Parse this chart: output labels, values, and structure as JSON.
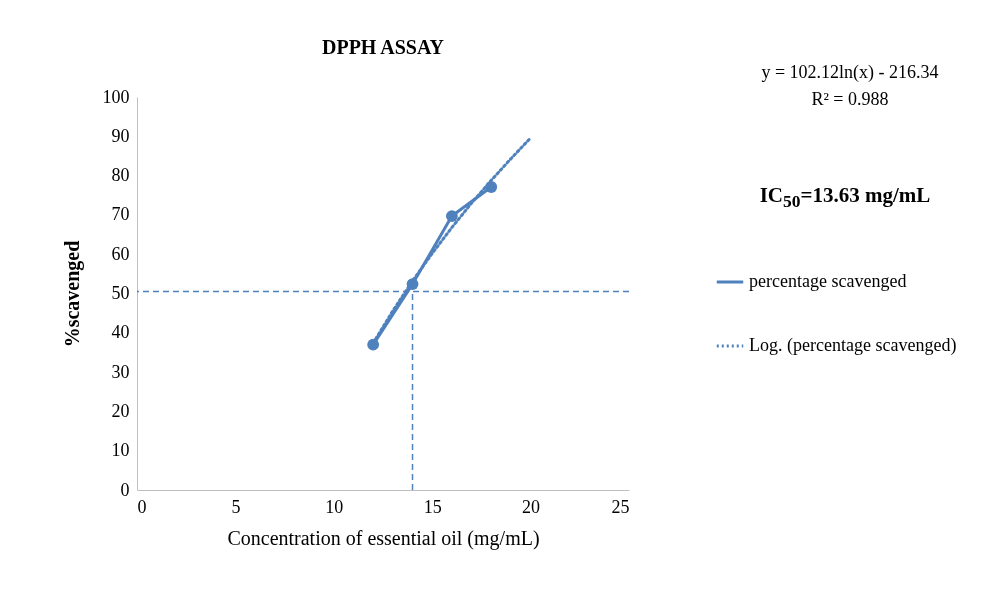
{
  "chart_data": {
    "type": "line",
    "title": "DPPH ASSAY",
    "xlabel": "Concentration of essential oil (mg/mL)",
    "ylabel": "%scavenged",
    "xlim": [
      0,
      25
    ],
    "xticks": [
      0,
      5,
      10,
      15,
      20,
      25
    ],
    "ylim": [
      0,
      100
    ],
    "yticks": [
      0,
      10,
      20,
      30,
      40,
      50,
      60,
      70,
      80,
      90,
      100
    ],
    "grid": false,
    "legend": "right",
    "marker": "circle",
    "series": [
      {
        "name": "percentage scavenged",
        "color": "#4f81bd",
        "x": [
          12,
          14,
          16,
          18
        ],
        "values": [
          37,
          52.4,
          69.7,
          77.1
        ]
      },
      {
        "name": "Log. (percentage scavenged)",
        "color": "#4f81bd",
        "type": "line",
        "line_style": "dotted",
        "marker": "none",
        "x": [
          12,
          13,
          14,
          15,
          16,
          17,
          18,
          19,
          20
        ],
        "values": [
          37.4,
          45.6,
          53.2,
          60.2,
          66.8,
          73,
          78.8,
          84.3,
          89.6
        ]
      }
    ],
    "ref_lines": [
      {
        "axis": "y",
        "value": 50.5,
        "color": "#4f81bd",
        "line_style": "dashed"
      },
      {
        "axis": "x",
        "value": 14,
        "color": "#4f81bd",
        "line_style": "dashed"
      }
    ],
    "annotations": [
      "y = 102.12ln(x) - 216.34",
      "R² = 0.988",
      "IC$_{50}$=13.63 mg/mL"
    ]
  }
}
